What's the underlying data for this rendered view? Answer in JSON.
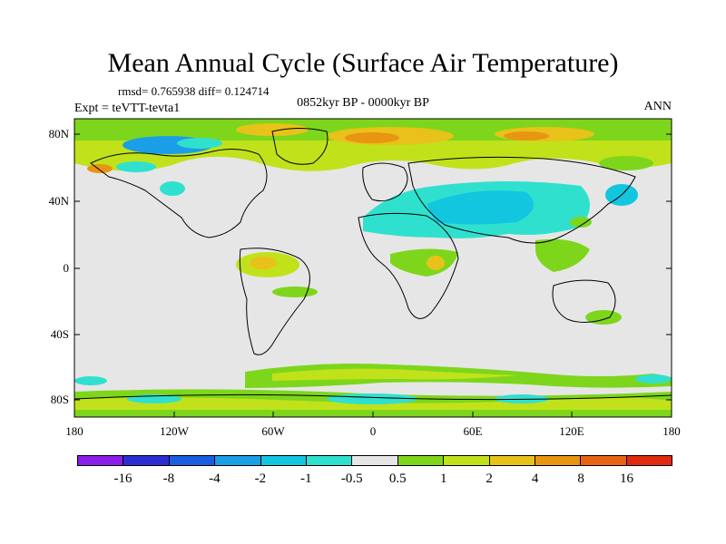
{
  "title": "Mean Annual Cycle (Surface Air Temperature)",
  "stats": "rmsd= 0.765938 diff= 0.124714",
  "expt": "Expt = teVTT-tevta1",
  "period": "0852kyr BP - 0000kyr BP",
  "season": "ANN",
  "lat_ticks": [
    "80N",
    "40N",
    "0",
    "40S",
    "80S"
  ],
  "lon_ticks": [
    "180",
    "120W",
    "60W",
    "0",
    "60E",
    "120E",
    "180"
  ],
  "colorbar": {
    "colors": [
      "#8c1eea",
      "#2d2ed1",
      "#1a5fe0",
      "#1a9ee8",
      "#12c6e0",
      "#30e0cf",
      "#e6e6e6",
      "#7dd61b",
      "#c1e21b",
      "#e8c21a",
      "#e89512",
      "#e86414",
      "#e12a10"
    ],
    "labels": [
      "-16",
      "-8",
      "-4",
      "-2",
      "-1",
      "-0.5",
      "0.5",
      "1",
      "2",
      "4",
      "8",
      "16"
    ]
  },
  "colors": {
    "ocean_background": "#e6e6e6",
    "coastline": "#000000"
  }
}
